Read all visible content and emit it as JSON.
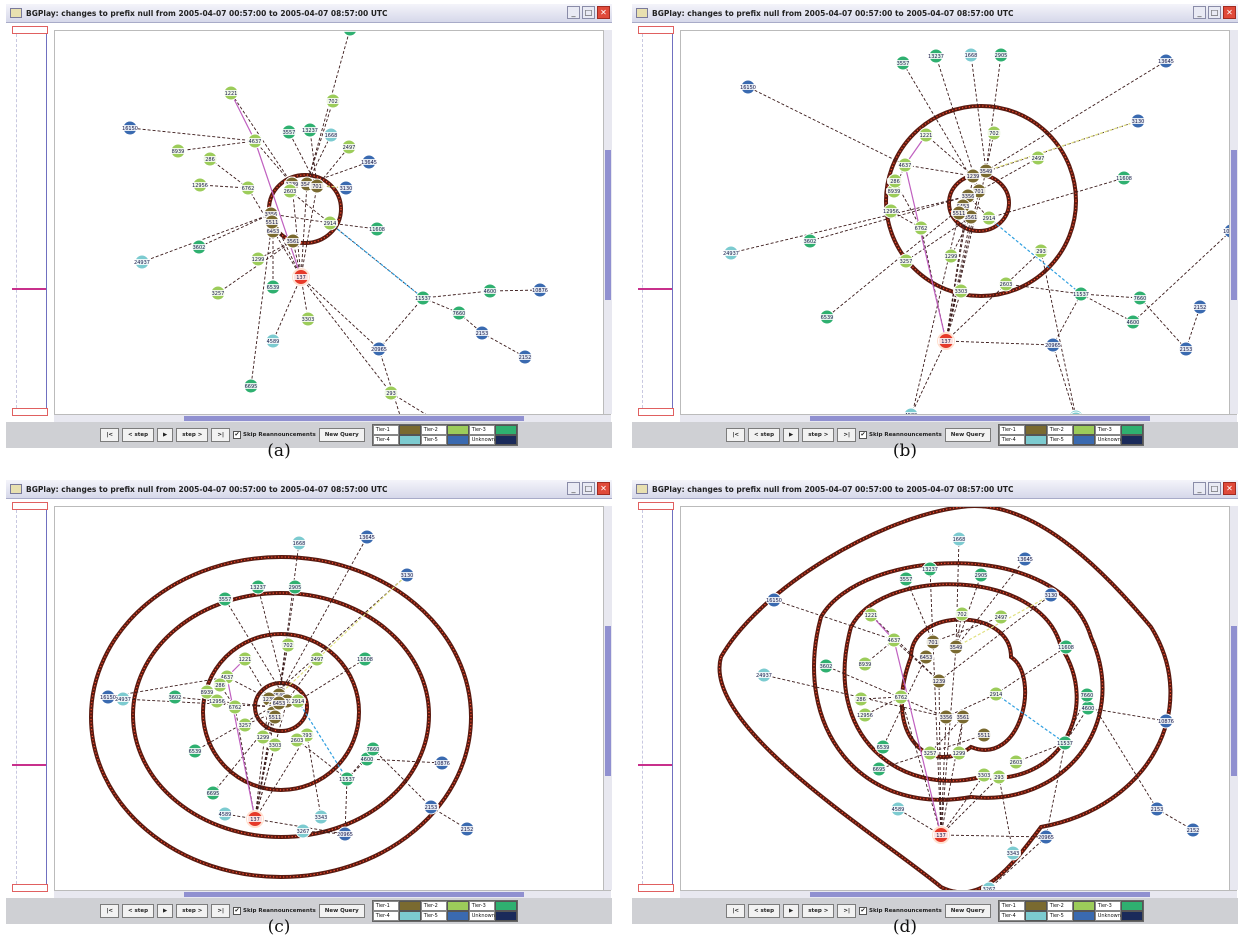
{
  "window": {
    "title": "BGPlay: changes to prefix null from 2005-04-07 00:57:00 to 2005-04-07 08:57:00 UTC",
    "minimize_label": "_",
    "maximize_label": "□",
    "close_label": "✕"
  },
  "toolbar": {
    "first_label": "|<",
    "step_back_label": "< step",
    "play_label": "▶",
    "step_forward_label": "step >",
    "last_label": ">|",
    "skip_checkbox_mark": "✔",
    "skip_reannouncements_label": "Skip Reannouncements",
    "new_query_label": "New Query"
  },
  "legend": [
    {
      "label": "Tier-1",
      "color": "#7a6a30"
    },
    {
      "label": "Tier-2",
      "color": "#9ccc5a"
    },
    {
      "label": "Tier-3",
      "color": "#2fb070"
    },
    {
      "label": "Tier-4",
      "color": "#7ccbd0"
    },
    {
      "label": "Tier-5",
      "color": "#3a6ab0"
    },
    {
      "label": "Unknown",
      "color": "#1a2a5a"
    }
  ],
  "colors": {
    "tier1": "#7a6a30",
    "tier2": "#9ccc5a",
    "tier3": "#2fb070",
    "tier4": "#7ccbd0",
    "tier5": "#3a6ab0",
    "origin": "#e63a2a"
  },
  "captions": {
    "a": "(a)",
    "b": "(b)",
    "c": "(c)",
    "d": "(d)"
  },
  "nodes": [
    {
      "id": "137",
      "tier": "origin"
    },
    {
      "id": "3549",
      "tier": "tier1"
    },
    {
      "id": "701",
      "tier": "tier1"
    },
    {
      "id": "1239",
      "tier": "tier1"
    },
    {
      "id": "3356",
      "tier": "tier1"
    },
    {
      "id": "3561",
      "tier": "tier1"
    },
    {
      "id": "6453",
      "tier": "tier1"
    },
    {
      "id": "5511",
      "tier": "tier1"
    },
    {
      "id": "2914",
      "tier": "tier2"
    },
    {
      "id": "1221",
      "tier": "tier2"
    },
    {
      "id": "702",
      "tier": "tier2"
    },
    {
      "id": "4637",
      "tier": "tier2"
    },
    {
      "id": "8939",
      "tier": "tier2"
    },
    {
      "id": "286",
      "tier": "tier2"
    },
    {
      "id": "12956",
      "tier": "tier2"
    },
    {
      "id": "6762",
      "tier": "tier2"
    },
    {
      "id": "2497",
      "tier": "tier2"
    },
    {
      "id": "1299",
      "tier": "tier2"
    },
    {
      "id": "3257",
      "tier": "tier2"
    },
    {
      "id": "3303",
      "tier": "tier2"
    },
    {
      "id": "293",
      "tier": "tier2"
    },
    {
      "id": "2603",
      "tier": "tier2"
    },
    {
      "id": "3557",
      "tier": "tier3"
    },
    {
      "id": "13237",
      "tier": "tier3"
    },
    {
      "id": "11608",
      "tier": "tier3"
    },
    {
      "id": "3602",
      "tier": "tier3"
    },
    {
      "id": "6539",
      "tier": "tier3"
    },
    {
      "id": "6695",
      "tier": "tier3"
    },
    {
      "id": "11537",
      "tier": "tier3"
    },
    {
      "id": "4600",
      "tier": "tier3"
    },
    {
      "id": "7660",
      "tier": "tier3"
    },
    {
      "id": "2905",
      "tier": "tier3"
    },
    {
      "id": "1668",
      "tier": "tier4"
    },
    {
      "id": "24937",
      "tier": "tier4"
    },
    {
      "id": "4589",
      "tier": "tier4"
    },
    {
      "id": "3343",
      "tier": "tier4"
    },
    {
      "id": "3267",
      "tier": "tier4"
    },
    {
      "id": "13645",
      "tier": "tier5"
    },
    {
      "id": "3130",
      "tier": "tier5"
    },
    {
      "id": "16150",
      "tier": "tier5"
    },
    {
      "id": "10876",
      "tier": "tier5"
    },
    {
      "id": "20965",
      "tier": "tier5"
    },
    {
      "id": "2153",
      "tier": "tier5"
    },
    {
      "id": "2152",
      "tier": "tier5"
    }
  ]
}
